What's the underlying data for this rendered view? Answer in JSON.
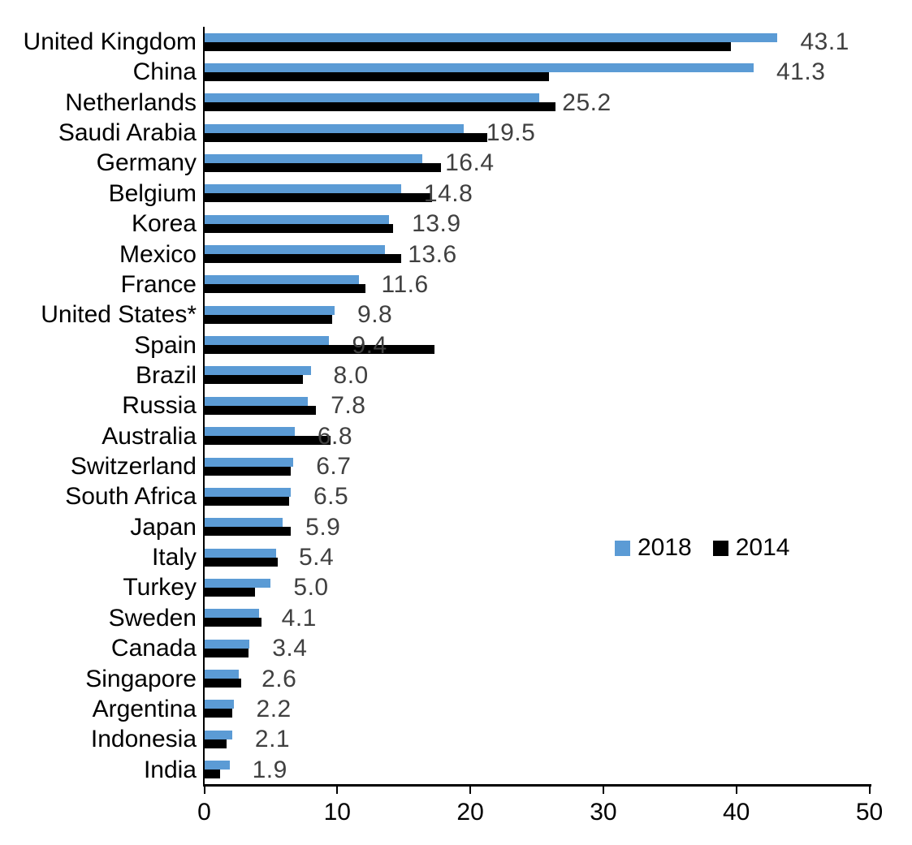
{
  "chart_data": {
    "type": "bar",
    "orientation": "horizontal",
    "title": "",
    "xlabel": "",
    "ylabel": "",
    "xlim": [
      0,
      50
    ],
    "x_ticks": [
      0,
      10,
      20,
      30,
      40,
      50
    ],
    "x_tick_labels": [
      "0",
      "10",
      "20",
      "30",
      "40",
      "50"
    ],
    "grid": false,
    "legend_position": "center-right",
    "categories": [
      "United Kingdom",
      "China",
      "Netherlands",
      "Saudi Arabia",
      "Germany",
      "Belgium",
      "Korea",
      "Mexico",
      "France",
      "United States*",
      "Spain",
      "Brazil",
      "Russia",
      "Australia",
      "Switzerland",
      "South Africa",
      "Japan",
      "Italy",
      "Turkey",
      "Sweden",
      "Canada",
      "Singapore",
      "Argentina",
      "Indonesia",
      "India"
    ],
    "series": [
      {
        "name": "2018",
        "color": "#5B9BD5",
        "values": [
          43.1,
          41.3,
          25.2,
          19.5,
          16.4,
          14.8,
          13.9,
          13.6,
          11.6,
          9.8,
          9.4,
          8.0,
          7.8,
          6.8,
          6.7,
          6.5,
          5.9,
          5.4,
          5.0,
          4.1,
          3.4,
          2.6,
          2.2,
          2.1,
          1.9
        ]
      },
      {
        "name": "2014",
        "color": "#000000",
        "values": [
          39.6,
          25.9,
          26.4,
          21.3,
          17.8,
          17.1,
          14.2,
          14.8,
          12.1,
          9.6,
          17.3,
          7.4,
          8.4,
          9.5,
          6.5,
          6.4,
          6.5,
          5.5,
          3.8,
          4.3,
          3.3,
          2.8,
          2.1,
          1.7,
          1.2
        ]
      }
    ],
    "data_labels": {
      "series": "2018",
      "labels": [
        "43.1",
        "41.3",
        "25.2",
        "19.5",
        "16.4",
        "14.8",
        "13.9",
        "13.6",
        "11.6",
        "9.8",
        "9.4",
        "8.0",
        "7.8",
        "6.8",
        "6.7",
        "6.5",
        "5.9",
        "5.4",
        "5.0",
        "4.1",
        "3.4",
        "2.6",
        "2.2",
        "2.1",
        "1.9"
      ]
    }
  },
  "legend": {
    "items": [
      {
        "label": "2018",
        "color": "#5B9BD5"
      },
      {
        "label": "2014",
        "color": "#000000"
      }
    ]
  },
  "colors": {
    "bar_2018": "#5B9BD5",
    "bar_2014": "#000000",
    "value_label": "#404040",
    "axis": "#000000",
    "text": "#000000",
    "background": "#FFFFFF"
  }
}
